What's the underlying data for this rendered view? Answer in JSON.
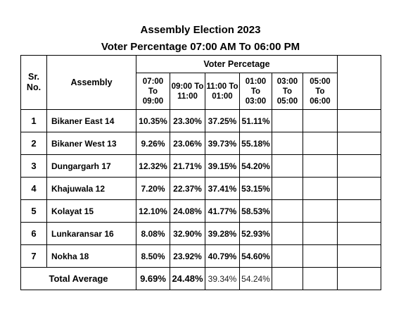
{
  "header": {
    "title": "Assembly Election 2023",
    "subtitle": "Voter Percentage 07:00 AM To 06:00 PM"
  },
  "table": {
    "col_srno": "Sr.\nNo.",
    "col_assembly": "Assembly",
    "col_group": "Voter Percetage",
    "slots": [
      "07:00\nTo\n09:00",
      "09:00 To\n11:00",
      "11:00 To\n01:00",
      "01:00\nTo\n03:00",
      "03:00\nTo\n05:00",
      "05:00\nTo\n06:00"
    ],
    "rows": [
      {
        "sr": "1",
        "name": "Bikaner East 14",
        "v": [
          "10.35%",
          "23.30%",
          "37.25%",
          "51.11%",
          "",
          ""
        ]
      },
      {
        "sr": "2",
        "name": "Bikaner West 13",
        "v": [
          "9.26%",
          "23.06%",
          "39.73%",
          "55.18%",
          "",
          ""
        ]
      },
      {
        "sr": "3",
        "name": "Dungargarh 17",
        "v": [
          "12.32%",
          "21.71%",
          "39.15%",
          "54.20%",
          "",
          ""
        ]
      },
      {
        "sr": "4",
        "name": "Khajuwala 12",
        "v": [
          "7.20%",
          "22.37%",
          "37.41%",
          "53.15%",
          "",
          ""
        ]
      },
      {
        "sr": "5",
        "name": "Kolayat 15",
        "v": [
          "12.10%",
          "24.08%",
          "41.77%",
          "58.53%",
          "",
          ""
        ]
      },
      {
        "sr": "6",
        "name": "Lunkaransar 16",
        "v": [
          "8.08%",
          "32.90%",
          "39.28%",
          "52.93%",
          "",
          ""
        ]
      },
      {
        "sr": "7",
        "name": "Nokha 18",
        "v": [
          "8.50%",
          "23.92%",
          "40.79%",
          "54.60%",
          "",
          ""
        ]
      }
    ],
    "total": {
      "label": "Total Average",
      "v": [
        "9.69%",
        "24.48%",
        "39.34%",
        "54.24%",
        "",
        ""
      ]
    }
  }
}
